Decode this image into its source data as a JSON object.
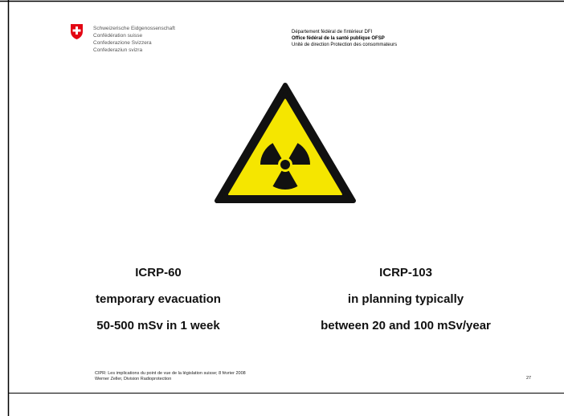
{
  "header": {
    "left": [
      "Schweizerische Eidgenossenschaft",
      "Confédération suisse",
      "Confederazione Svizzera",
      "Confederaziun svizra"
    ],
    "right": [
      "Département fédéral de l'intérieur DFI",
      "Office fédéral de la santé publique OFSP",
      "Unité de direction Protection des consommateurs"
    ]
  },
  "columns": [
    {
      "title": "ICRP-60",
      "lines": [
        "temporary evacuation",
        "50-500 mSv in 1 week"
      ]
    },
    {
      "title": "ICRP-103",
      "lines": [
        "in planning typically",
        "between 20 and 100 mSv/year"
      ]
    }
  ],
  "footer": {
    "lines": [
      "CIPR: Les implications du point de vue de la législation suisse; 8 février 2008",
      "Werner Zeller, Division Radioprotection"
    ],
    "page": "27"
  }
}
